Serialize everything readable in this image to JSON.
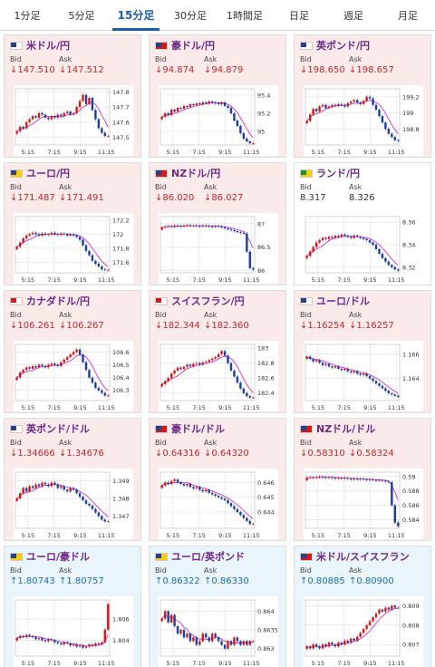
{
  "tabs": [
    {
      "label": "1分足"
    },
    {
      "label": "5分足"
    },
    {
      "label": "15分足",
      "active": true
    },
    {
      "label": "30分足"
    },
    {
      "label": "1時間足"
    },
    {
      "label": "日足"
    },
    {
      "label": "週足"
    },
    {
      "label": "月足"
    }
  ],
  "labels": {
    "bid": "Bid",
    "ask": "Ask"
  },
  "colors": {
    "up_candle": "#d11a1a",
    "down_candle": "#1f3ea0",
    "ma": "#cc33cc",
    "down_bg": "#fbeaea",
    "up_bg": "#eaf4fb"
  },
  "cards": [
    {
      "pair": "米ドル/円",
      "trend": "down",
      "bid": "↓147.510",
      "ask": "↓147.512",
      "flag": [
        "#2a3e8c",
        "#ffffff"
      ],
      "chart_data": {
        "type": "candlestick",
        "x_ticks": [
          "5:15",
          "7:15",
          "9:15",
          "11:15"
        ],
        "y_ticks": [
          "147.8",
          "147.7",
          "147.6",
          "147.5"
        ],
        "ylim": [
          147.45,
          147.82
        ],
        "close": [
          147.54,
          147.57,
          147.56,
          147.6,
          147.62,
          147.64,
          147.63,
          147.66,
          147.65,
          147.63,
          147.62,
          147.64,
          147.63,
          147.65,
          147.64,
          147.66,
          147.67,
          147.65,
          147.66,
          147.7,
          147.74,
          147.78,
          147.72,
          147.76,
          147.68,
          147.62,
          147.56,
          147.53,
          147.51,
          147.51
        ]
      }
    },
    {
      "pair": "豪ドル/円",
      "trend": "down",
      "bid": "↓94.874",
      "ask": "↓94.879",
      "flag": [
        "#2a3e8c",
        "#d11a1a"
      ],
      "chart_data": {
        "type": "candlestick",
        "x_ticks": [
          "5:15",
          "7:15",
          "9:15",
          "11:15"
        ],
        "y_ticks": [
          "95.4",
          "95.2",
          "95"
        ],
        "ylim": [
          94.85,
          95.47
        ],
        "close": [
          95.16,
          95.2,
          95.18,
          95.24,
          95.22,
          95.26,
          95.25,
          95.28,
          95.27,
          95.3,
          95.29,
          95.31,
          95.3,
          95.32,
          95.31,
          95.33,
          95.32,
          95.31,
          95.3,
          95.32,
          95.28,
          95.26,
          95.2,
          95.12,
          95.06,
          94.98,
          94.92,
          94.89,
          94.87,
          94.87
        ]
      }
    },
    {
      "pair": "英ポンド/円",
      "trend": "down",
      "bid": "↓198.650",
      "ask": "↓198.657",
      "flag": [
        "#2a3e8c",
        "#ffffff"
      ],
      "chart_data": {
        "type": "candlestick",
        "x_ticks": [
          "5:15",
          "7:15",
          "9:15",
          "11:15"
        ],
        "y_ticks": [
          "199.2",
          "199",
          "198.8"
        ],
        "ylim": [
          198.6,
          199.3
        ],
        "close": [
          198.9,
          198.98,
          199.05,
          199.02,
          199.08,
          199.1,
          199.06,
          199.08,
          199.1,
          199.09,
          199.11,
          199.1,
          199.08,
          199.12,
          199.14,
          199.16,
          199.13,
          199.11,
          199.15,
          199.2,
          199.18,
          199.1,
          199.04,
          198.96,
          198.88,
          198.8,
          198.74,
          198.7,
          198.66,
          198.65
        ]
      }
    },
    {
      "pair": "ユーロ/円",
      "trend": "down",
      "bid": "↓171.487",
      "ask": "↓171.491",
      "flag": [
        "#2a3e8c",
        "#ffcc00"
      ],
      "chart_data": {
        "type": "candlestick",
        "x_ticks": [
          "5:15",
          "7:15",
          "9:15",
          "11:15"
        ],
        "y_ticks": [
          "172.2",
          "172",
          "171.8",
          "171.6"
        ],
        "ylim": [
          171.45,
          172.25
        ],
        "close": [
          171.82,
          171.88,
          171.94,
          171.98,
          172.0,
          172.02,
          172.0,
          171.98,
          172.01,
          171.99,
          172.0,
          172.02,
          172.0,
          171.99,
          172.01,
          172.0,
          171.98,
          172.0,
          171.98,
          171.96,
          171.92,
          171.84,
          171.76,
          171.7,
          171.62,
          171.58,
          171.54,
          171.5,
          171.49,
          171.49
        ]
      }
    },
    {
      "pair": "NZドル/円",
      "trend": "down",
      "bid": "↓86.020",
      "ask": "↓86.027",
      "flag": [
        "#2a3e8c",
        "#d11a1a"
      ],
      "chart_data": {
        "type": "candlestick",
        "x_ticks": [
          "5:15",
          "7:15",
          "9:15",
          "11:15"
        ],
        "y_ticks": [
          "87",
          "86.5",
          "86"
        ],
        "ylim": [
          85.95,
          87.15
        ],
        "close": [
          86.92,
          86.94,
          86.95,
          86.93,
          86.96,
          86.95,
          86.94,
          86.96,
          86.97,
          86.95,
          86.96,
          86.95,
          86.94,
          86.96,
          86.95,
          86.94,
          86.93,
          86.95,
          86.94,
          86.92,
          86.9,
          86.88,
          86.86,
          86.84,
          86.82,
          86.8,
          86.79,
          86.4,
          86.05,
          86.02
        ]
      }
    },
    {
      "pair": "ランド/円",
      "trend": "flat",
      "bid": "8.317",
      "ask": "8.326",
      "flag": [
        "#1a8c3a",
        "#ffcc00"
      ],
      "chart_data": {
        "type": "candlestick",
        "x_ticks": [
          "5:15",
          "7:15",
          "9:15",
          "11:15"
        ],
        "y_ticks": [
          "8.36",
          "8.34",
          "8.32"
        ],
        "ylim": [
          8.315,
          8.365
        ],
        "close": [
          8.33,
          8.334,
          8.338,
          8.342,
          8.344,
          8.346,
          8.345,
          8.347,
          8.346,
          8.348,
          8.347,
          8.349,
          8.348,
          8.347,
          8.346,
          8.348,
          8.347,
          8.346,
          8.345,
          8.344,
          8.342,
          8.34,
          8.336,
          8.332,
          8.328,
          8.325,
          8.322,
          8.32,
          8.318,
          8.317
        ]
      }
    },
    {
      "pair": "カナダドル/円",
      "trend": "down",
      "bid": "↓106.261",
      "ask": "↓106.267",
      "flag": [
        "#d11a1a",
        "#ffffff"
      ],
      "chart_data": {
        "type": "candlestick",
        "x_ticks": [
          "5:15",
          "7:15",
          "9:15",
          "11:15"
        ],
        "y_ticks": [
          "106.6",
          "106.5",
          "106.4",
          "106.3"
        ],
        "ylim": [
          106.22,
          106.66
        ],
        "close": [
          106.4,
          106.44,
          106.46,
          106.48,
          106.47,
          106.49,
          106.48,
          106.5,
          106.49,
          106.48,
          106.5,
          106.51,
          106.5,
          106.49,
          106.52,
          106.54,
          106.56,
          106.58,
          106.6,
          106.62,
          106.58,
          106.52,
          106.46,
          106.4,
          106.36,
          106.32,
          106.3,
          106.28,
          106.26,
          106.26
        ]
      }
    },
    {
      "pair": "スイスフラン/円",
      "trend": "down",
      "bid": "↓182.344",
      "ask": "↓182.360",
      "flag": [
        "#d11a1a",
        "#ffffff"
      ],
      "chart_data": {
        "type": "candlestick",
        "x_ticks": [
          "5:15",
          "7:15",
          "9:15",
          "11:15"
        ],
        "y_ticks": [
          "183",
          "182.8",
          "182.6",
          "182.4"
        ],
        "ylim": [
          182.3,
          183.05
        ],
        "close": [
          182.52,
          182.56,
          182.6,
          182.66,
          182.7,
          182.74,
          182.72,
          182.75,
          182.78,
          182.76,
          182.79,
          182.8,
          182.78,
          182.81,
          182.82,
          182.84,
          182.86,
          182.88,
          182.92,
          182.96,
          182.9,
          182.8,
          182.7,
          182.62,
          182.54,
          182.46,
          182.4,
          182.36,
          182.34,
          182.34
        ]
      }
    },
    {
      "pair": "ユーロ/ドル",
      "trend": "down",
      "bid": "↓1.16254",
      "ask": "↓1.16257",
      "flag": [
        "#2a3e8c",
        "#ffffff"
      ],
      "chart_data": {
        "type": "candlestick",
        "x_ticks": [
          "5:15",
          "7:15",
          "9:15",
          "11:15"
        ],
        "y_ticks": [
          "1.166",
          "1.164"
        ],
        "ylim": [
          1.1622,
          1.1668
        ],
        "close": [
          1.1658,
          1.1656,
          1.1654,
          1.1655,
          1.1653,
          1.1651,
          1.1652,
          1.165,
          1.1649,
          1.165,
          1.1648,
          1.1647,
          1.1648,
          1.1646,
          1.1645,
          1.1646,
          1.1644,
          1.1643,
          1.1644,
          1.1642,
          1.164,
          1.1638,
          1.1636,
          1.1634,
          1.1632,
          1.163,
          1.1628,
          1.1627,
          1.1626,
          1.1625
        ]
      }
    },
    {
      "pair": "英ポンド/ドル",
      "trend": "down",
      "bid": "↓1.34666",
      "ask": "↓1.34676",
      "flag": [
        "#2a3e8c",
        "#ffffff"
      ],
      "chart_data": {
        "type": "candlestick",
        "x_ticks": [
          "5:15",
          "7:15",
          "9:15",
          "11:15"
        ],
        "y_ticks": [
          "1.349",
          "1.348",
          "1.347"
        ],
        "ylim": [
          1.3463,
          1.3495
        ],
        "close": [
          1.348,
          1.3483,
          1.3486,
          1.3484,
          1.3487,
          1.3486,
          1.3488,
          1.3487,
          1.3489,
          1.3488,
          1.3487,
          1.3489,
          1.3488,
          1.3486,
          1.3487,
          1.3485,
          1.3484,
          1.3486,
          1.3485,
          1.3483,
          1.3481,
          1.3479,
          1.3477,
          1.3476,
          1.3474,
          1.3472,
          1.347,
          1.3468,
          1.3467,
          1.3467
        ]
      }
    },
    {
      "pair": "豪ドル/ドル",
      "trend": "down",
      "bid": "↓0.64316",
      "ask": "↓0.64320",
      "flag": [
        "#2a3e8c",
        "#d11a1a"
      ],
      "chart_data": {
        "type": "candlestick",
        "x_ticks": [
          "5:15",
          "7:15",
          "9:15",
          "11:15"
        ],
        "y_ticks": [
          "0.646",
          "0.645",
          "0.644"
        ],
        "ylim": [
          0.6429,
          0.6467
        ],
        "close": [
          0.6458,
          0.646,
          0.6459,
          0.6461,
          0.6462,
          0.646,
          0.6459,
          0.6458,
          0.6459,
          0.6457,
          0.6456,
          0.6457,
          0.6455,
          0.6454,
          0.6455,
          0.6453,
          0.6452,
          0.6451,
          0.645,
          0.6449,
          0.6448,
          0.6446,
          0.6444,
          0.6442,
          0.644,
          0.6438,
          0.6436,
          0.6434,
          0.6432,
          0.6432
        ]
      }
    },
    {
      "pair": "NZドル/ドル",
      "trend": "down",
      "bid": "↓0.58310",
      "ask": "↓0.58324",
      "flag": [
        "#2a3e8c",
        "#d11a1a"
      ],
      "chart_data": {
        "type": "candlestick",
        "x_ticks": [
          "5:15",
          "7:15",
          "9:15",
          "11:15"
        ],
        "y_ticks": [
          "0.59",
          "0.588",
          "0.586",
          "0.584"
        ],
        "ylim": [
          0.5828,
          0.5906
        ],
        "close": [
          0.5898,
          0.5899,
          0.5898,
          0.5899,
          0.59,
          0.5899,
          0.5898,
          0.5899,
          0.5898,
          0.5897,
          0.5898,
          0.5897,
          0.5898,
          0.5897,
          0.5896,
          0.5897,
          0.5896,
          0.5897,
          0.5896,
          0.5895,
          0.5896,
          0.5895,
          0.5894,
          0.5895,
          0.5894,
          0.5893,
          0.5892,
          0.586,
          0.5836,
          0.5831
        ]
      }
    },
    {
      "pair": "ユーロ/豪ドル",
      "trend": "up",
      "bid": "↑1.80743",
      "ask": "↑1.80757",
      "flag": [
        "#2a3e8c",
        "#ffcc00"
      ],
      "chart_data": {
        "type": "candlestick",
        "x_ticks": [
          "5:15",
          "7:15",
          "9:15",
          "11:15"
        ],
        "y_ticks": [
          "1.806",
          "1.804"
        ],
        "ylim": [
          1.8025,
          1.8078
        ],
        "close": [
          1.8042,
          1.8044,
          1.8043,
          1.8045,
          1.8044,
          1.8043,
          1.8041,
          1.8042,
          1.804,
          1.8039,
          1.8041,
          1.804,
          1.8038,
          1.8037,
          1.8036,
          1.8038,
          1.8037,
          1.8035,
          1.8036,
          1.8034,
          1.8035,
          1.8033,
          1.8034,
          1.8036,
          1.8035,
          1.8037,
          1.8036,
          1.8038,
          1.805,
          1.8074
        ]
      }
    },
    {
      "pair": "ユーロ/英ポンド",
      "trend": "up",
      "bid": "↑0.86322",
      "ask": "↑0.86330",
      "flag": [
        "#2a3e8c",
        "#ffcc00"
      ],
      "chart_data": {
        "type": "candlestick",
        "x_ticks": [
          "5:15",
          "7:15",
          "9:15",
          "11:15"
        ],
        "y_ticks": [
          "0.864",
          "0.8635",
          "0.863"
        ],
        "ylim": [
          0.8628,
          0.8643
        ],
        "close": [
          0.8638,
          0.864,
          0.8637,
          0.8639,
          0.8636,
          0.8634,
          0.8635,
          0.8633,
          0.8634,
          0.8632,
          0.8633,
          0.8631,
          0.8632,
          0.8634,
          0.8633,
          0.8632,
          0.8634,
          0.8633,
          0.8632,
          0.8631,
          0.863,
          0.8632,
          0.8631,
          0.8633,
          0.8632,
          0.8631,
          0.8632,
          0.8631,
          0.8632,
          0.8632
        ]
      }
    },
    {
      "pair": "米ドル/スイスフラン",
      "trend": "up",
      "bid": "↑0.80885",
      "ask": "↑0.80900",
      "flag": [
        "#2a3e8c",
        "#d11a1a"
      ],
      "chart_data": {
        "type": "candlestick",
        "x_ticks": [
          "5:15",
          "7:15",
          "9:15",
          "11:15"
        ],
        "y_ticks": [
          "0.809",
          "0.808",
          "0.807"
        ],
        "ylim": [
          0.8064,
          0.8093
        ],
        "close": [
          0.8069,
          0.8068,
          0.807,
          0.8069,
          0.8068,
          0.807,
          0.8069,
          0.8071,
          0.807,
          0.8069,
          0.8071,
          0.807,
          0.8072,
          0.8071,
          0.8073,
          0.8072,
          0.8074,
          0.8076,
          0.8078,
          0.808,
          0.8082,
          0.8084,
          0.8086,
          0.8088,
          0.8087,
          0.8089,
          0.8088,
          0.809,
          0.8089,
          0.8089
        ]
      }
    }
  ]
}
